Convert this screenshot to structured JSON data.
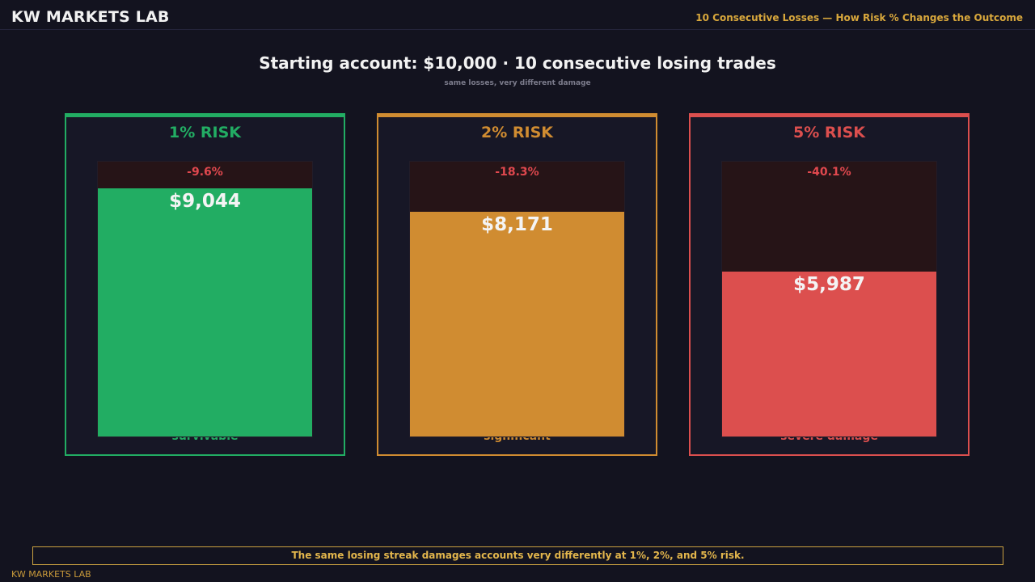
{
  "header": {
    "brand": "KW MARKETS LAB",
    "title": "10 Consecutive Losses — How Risk % Changes the Outcome"
  },
  "headline": "Starting account: $10,000  ·  10 consecutive losing trades",
  "subline": "same losses, very different damage",
  "colors": {
    "background": "#13131f",
    "green": "#22ad63",
    "orange": "#d08c31",
    "red": "#dc4f4e",
    "loss_text": "#e0484e",
    "gold": "#d9a83c"
  },
  "chart_data": {
    "type": "bar",
    "categories": [
      "1% RISK",
      "2% RISK",
      "5% RISK"
    ],
    "starting_balance": 10000,
    "ylim": [
      0,
      10000
    ],
    "values": [
      9044,
      8171,
      5987
    ],
    "value_labels": [
      "$9,044",
      "$8,171",
      "$5,987"
    ],
    "loss_labels": [
      "-9.6%",
      "-18.3%",
      "-40.1%"
    ],
    "verdicts": [
      "survivable",
      "significant",
      "severe damage"
    ],
    "colors": [
      "#22ad63",
      "#d08c31",
      "#dc4f4e"
    ]
  },
  "footer": {
    "note": "The same losing streak damages accounts very differently at 1%, 2%, and 5% risk.",
    "brand": "KW MARKETS LAB"
  }
}
